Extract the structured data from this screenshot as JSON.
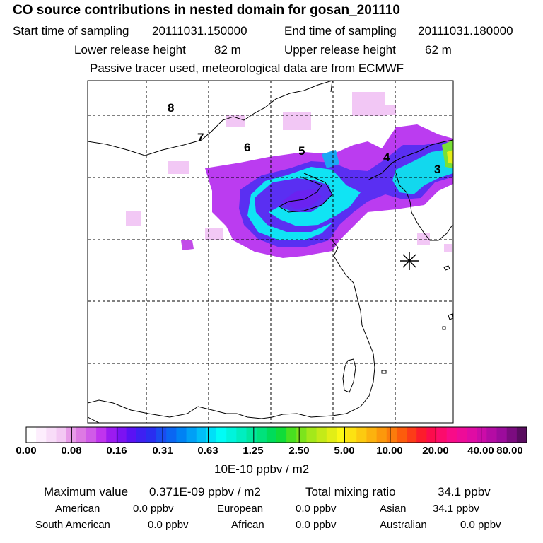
{
  "header": {
    "title": "CO  source contributions in nested domain for gosan_201110",
    "start_label": "Start time of sampling",
    "start_value": "20111031.150000",
    "end_label": "End time of sampling",
    "end_value": "20111031.180000",
    "lower_label": "Lower release height",
    "lower_value": "82 m",
    "upper_label": "Upper release height",
    "upper_value": "62 m",
    "note": "Passive tracer used, meteorological data are from ECMWF"
  },
  "map": {
    "region_labels": [
      "8",
      "7",
      "6",
      "5",
      "4",
      "3"
    ],
    "receptor_marker": "gosan-receptor-star-icon"
  },
  "colorbar": {
    "tick_labels": [
      "0.00",
      "0.08",
      "0.16",
      "0.31",
      "0.63",
      "1.25",
      "2.50",
      "5.00",
      "10.00",
      "20.00",
      "40.00",
      "80.00"
    ],
    "unit": "10E-10 ppbv / m2",
    "colors": [
      "#ffffff",
      "#fdeefd",
      "#f8dcf8",
      "#f3c8f3",
      "#e79be8",
      "#dd7ae3",
      "#d05be8",
      "#c034ee",
      "#9c1bf0",
      "#7c12f2",
      "#5a12f4",
      "#3e20f2",
      "#2a2ef0",
      "#1a4cf0",
      "#0a66f2",
      "#0082f4",
      "#00a0f6",
      "#00bef8",
      "#00e0f8",
      "#00fcf6",
      "#00f4dc",
      "#00eec0",
      "#00e8a0",
      "#00e27c",
      "#00dc5a",
      "#10dc38",
      "#48e020",
      "#7ce41c",
      "#a4e81a",
      "#c4ea18",
      "#e2ee16",
      "#fcf814",
      "#fce212",
      "#fcca10",
      "#fcb20e",
      "#fc980c",
      "#fc7c0c",
      "#fc5c0c",
      "#fc3c18",
      "#fc1c2c",
      "#fc0c4c",
      "#fc0c6c",
      "#f80c88",
      "#ee0c98",
      "#e00ca4",
      "#cc0ca8",
      "#b40ca4",
      "#9c0c9c",
      "#7c0c80",
      "#5a0c60"
    ]
  },
  "stats": {
    "max_label": "Maximum value",
    "max_value": "0.371E-09 ppbv / m2",
    "total_label": "Total mixing ratio",
    "total_value": "34.1 ppbv",
    "sources": [
      {
        "name": "American",
        "value": "0.0 ppbv"
      },
      {
        "name": "European",
        "value": "0.0 ppbv"
      },
      {
        "name": "Asian",
        "value": "34.1 ppbv"
      },
      {
        "name": "South American",
        "value": "0.0 ppbv"
      },
      {
        "name": "African",
        "value": "0.0 ppbv"
      },
      {
        "name": "Australian",
        "value": "0.0 ppbv"
      }
    ]
  }
}
